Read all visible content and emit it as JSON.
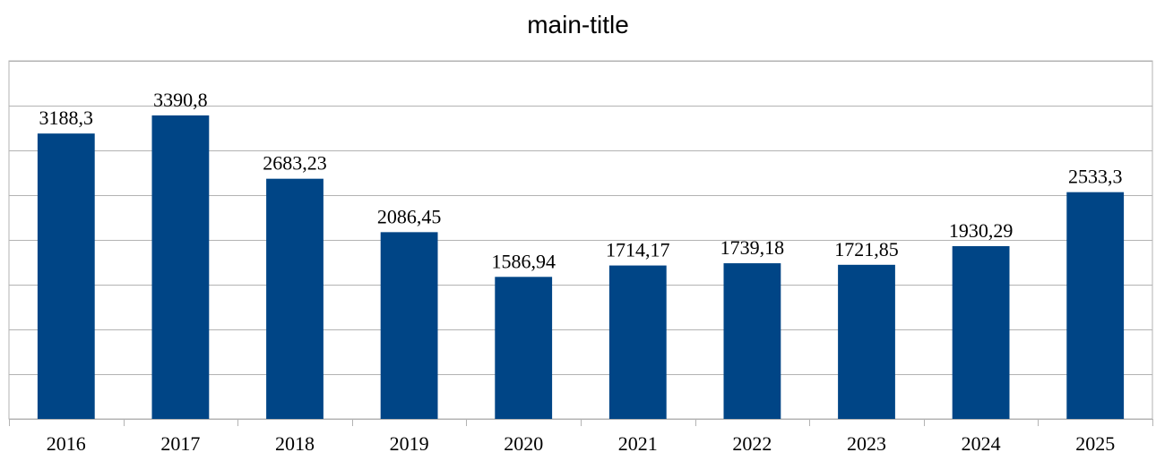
{
  "chart_data": {
    "type": "bar",
    "title": "main-title",
    "categories": [
      "2016",
      "2017",
      "2018",
      "2019",
      "2020",
      "2021",
      "2022",
      "2023",
      "2024",
      "2025"
    ],
    "values": [
      3188.3,
      3390.8,
      2683.23,
      2086.45,
      1586.94,
      1714.17,
      1739.18,
      1721.85,
      1930.29,
      2533.3
    ],
    "value_labels": [
      "3188,3",
      "3390,8",
      "2683,23",
      "2086,45",
      "1586,94",
      "1714,17",
      "1739,18",
      "1721,85",
      "1930,29",
      "2533,3"
    ],
    "ylim": [
      0,
      4000
    ],
    "y_gridlines": [
      0,
      500,
      1000,
      1500,
      2000,
      2500,
      3000,
      3500,
      4000
    ],
    "y_tick_labels_visible": false,
    "grid": true,
    "legend": "none",
    "colors": {
      "bar": "#004586",
      "grid": "#b3b3b3"
    }
  }
}
